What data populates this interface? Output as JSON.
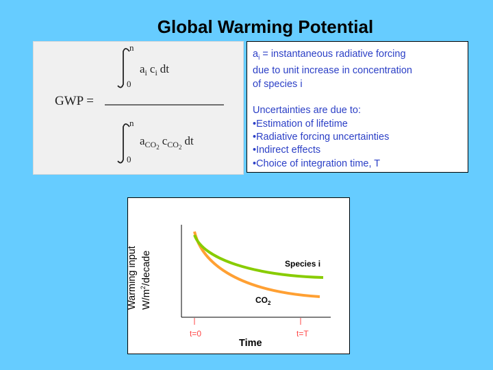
{
  "title": "Global Warming Potential",
  "equation": {
    "lhs": "GWP =",
    "upper_limit": "n",
    "lower_limit": "0",
    "numerator": {
      "a": "a",
      "a_sub": "i",
      "c": "c",
      "c_sub": "i",
      "dt": "dt"
    },
    "denominator": {
      "a": "a",
      "a_sub": "CO",
      "a_sub_sub": "2",
      "c": "c",
      "c_sub": "CO",
      "c_sub_sub": "2",
      "dt": "dt"
    }
  },
  "info": {
    "definition_symbol": "a",
    "definition_sub": "i",
    "definition_lines": [
      " = instantaneous radiative forcing",
      "due to unit increase in concentration",
      "of species i"
    ],
    "uncertainties_heading": "Uncertainties are due to:",
    "uncertainties": [
      "•Estimation of lifetime",
      "•Radiative forcing uncertainties",
      "•Indirect effects",
      "•Choice of integration time, T"
    ]
  },
  "chart": {
    "ylabel_line1": "Warming input",
    "ylabel_line2_prefix": "W/m",
    "ylabel_line2_sup": "2",
    "ylabel_line2_suffix": "/decade",
    "xlabel": "Time",
    "tick_start": "t=0",
    "tick_end": "t=T",
    "species_label": "Species i",
    "co2_label": "CO",
    "co2_sub": "2"
  },
  "colors": {
    "background": "#66ccff",
    "text_blue": "#2b3fc6",
    "species_curve": "#88cc00",
    "co2_curve": "#ffa033",
    "tick_red": "#ff4444"
  }
}
